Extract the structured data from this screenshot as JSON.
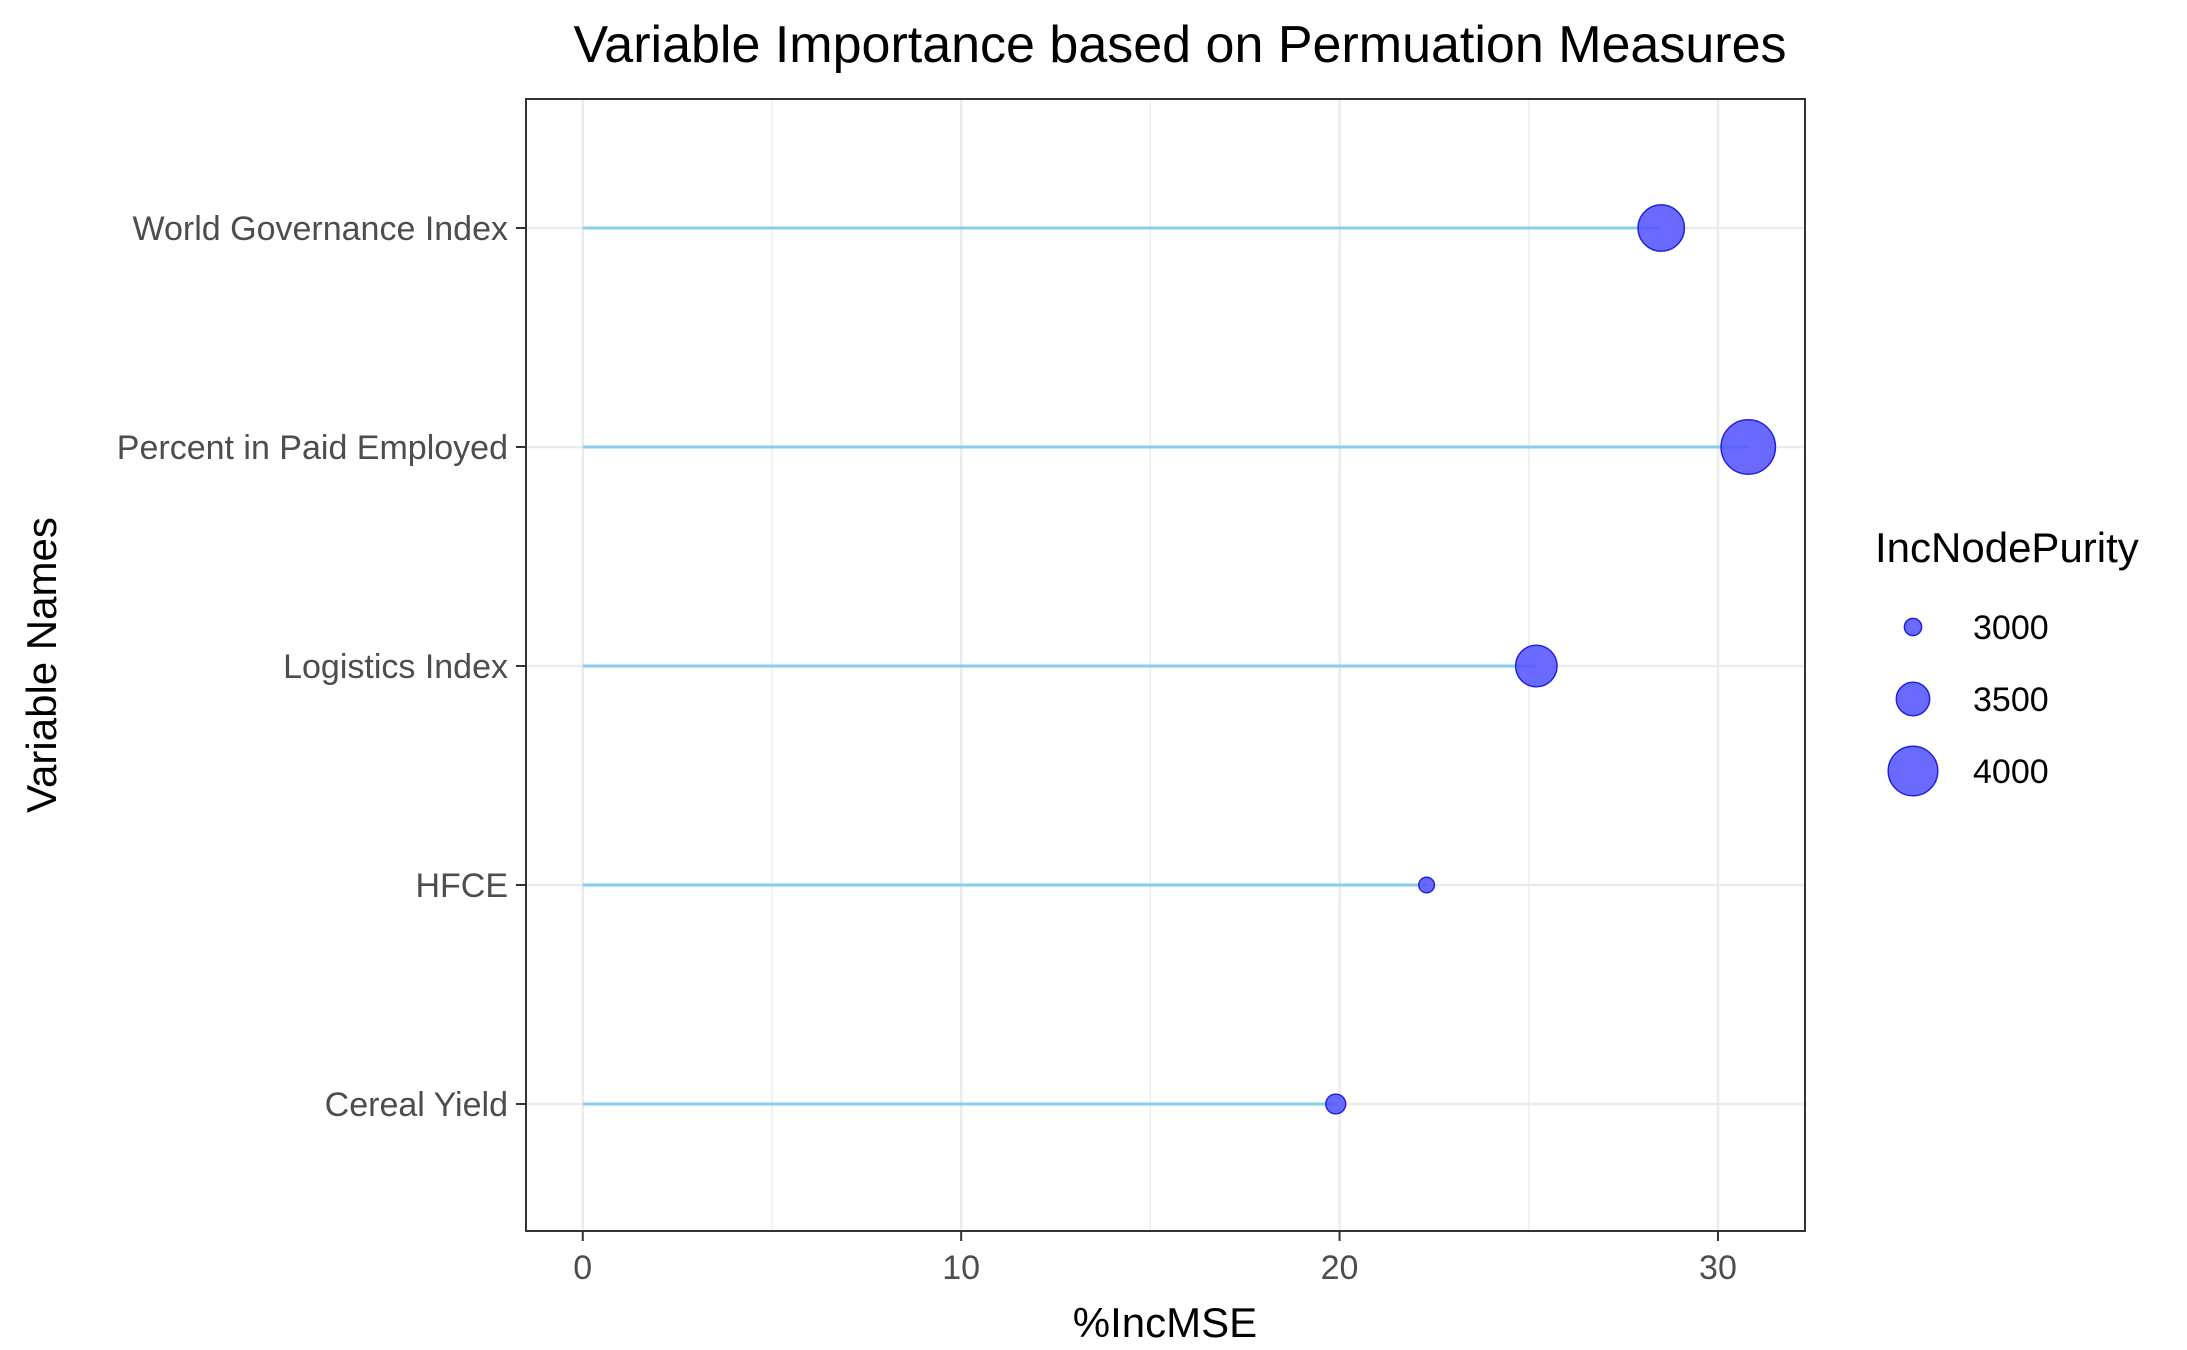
{
  "chart_data": {
    "type": "scatter",
    "subtype": "lollipop",
    "title": "Variable Importance based on Permuation Measures",
    "xlabel": "%IncMSE",
    "ylabel": "Variable Names",
    "xlim": [
      -1.5,
      32.3
    ],
    "x_ticks": [
      0,
      10,
      20,
      30
    ],
    "grid": true,
    "categories": [
      "World Governance Index",
      "Percent in Paid Employed",
      "Logistics Index",
      "HFCE",
      "Cereal Yield"
    ],
    "values": [
      28.5,
      30.8,
      25.2,
      22.3,
      19.9
    ],
    "size_values": [
      3900,
      4150,
      3750,
      2950,
      3080
    ],
    "size_variable": "IncNodePurity",
    "legend": {
      "title": "IncNodePurity",
      "placement": "right",
      "entries": [
        {
          "label": "3000",
          "value": 3000
        },
        {
          "label": "3500",
          "value": 3500
        },
        {
          "label": "4000",
          "value": 4000
        }
      ]
    },
    "colors": {
      "point_fill": "#5555ff",
      "point_stroke": "#2222dd",
      "segment": "#87ceeb",
      "grid": "#ebebeb",
      "panel_border": "#333333",
      "tick_text": "#4d4d4d"
    }
  }
}
